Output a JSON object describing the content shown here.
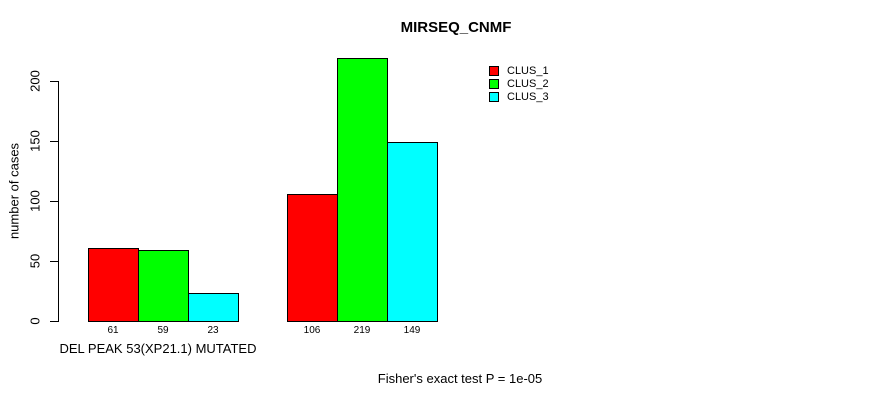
{
  "chart_data": {
    "type": "bar",
    "title": "MIRSEQ_CNMF",
    "ylabel": "number of cases",
    "xlabel": "DEL PEAK 53(XP21.1) MUTATED",
    "ylim": [
      0,
      220
    ],
    "yticks": [
      0,
      50,
      100,
      150,
      200
    ],
    "grid": false,
    "legend_position": "top-right",
    "bar_border_color": "#000000",
    "series": [
      {
        "name": "CLUS_1",
        "color": "#FF0000"
      },
      {
        "name": "CLUS_2",
        "color": "#00FF00"
      },
      {
        "name": "CLUS_3",
        "color": "#00FFFF"
      }
    ],
    "categories": [
      "group-1",
      "group-2"
    ],
    "groups": [
      {
        "values": [
          61,
          59,
          23
        ]
      },
      {
        "values": [
          106,
          219,
          149
        ]
      }
    ]
  },
  "footnote": "Fisher's exact test P = 1e-05"
}
